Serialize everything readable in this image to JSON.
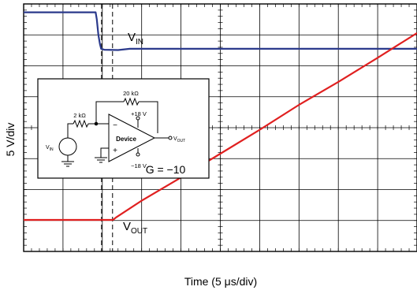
{
  "chart_data": {
    "type": "line",
    "title": "",
    "xlabel": "Time (5 μs/div)",
    "ylabel": "5 V/div",
    "grid": true,
    "divisions": {
      "x": 10,
      "y": 8
    },
    "xlim": [
      0,
      10
    ],
    "ylim": [
      0,
      8
    ],
    "series": [
      {
        "name": "V_IN",
        "label": {
          "main": "V",
          "sub": "IN"
        },
        "color": "#2b3a8c",
        "x": [
          0.0,
          1.83,
          1.86,
          1.9,
          1.94,
          1.97,
          2.05,
          2.4,
          2.7,
          10.0
        ],
        "y": [
          7.73,
          7.73,
          7.5,
          7.0,
          6.7,
          6.55,
          6.52,
          6.51,
          6.55,
          6.55
        ]
      },
      {
        "name": "V_OUT",
        "label": {
          "main": "V",
          "sub": "OUT"
        },
        "color": "#e02020",
        "x": [
          0.0,
          2.27,
          2.35,
          3.0,
          4.0,
          5.0,
          6.0,
          7.0,
          8.0,
          9.0,
          10.0
        ],
        "y": [
          1.02,
          1.02,
          1.1,
          1.64,
          2.39,
          3.16,
          3.93,
          4.74,
          5.48,
          6.26,
          7.06
        ]
      }
    ],
    "markers": {
      "dashed_vertical_x": [
        1.98,
        2.26
      ]
    },
    "inset": {
      "r_feedback": "20 kΩ",
      "r_input": "2 kΩ",
      "v_pos": "+18 V",
      "v_neg": "−18 V",
      "device": "Device",
      "minus": "−",
      "plus": "+",
      "vin": {
        "main": "V",
        "sub": "IN"
      },
      "vout": {
        "main": "V",
        "sub": "OUT"
      },
      "gain": "G = −10"
    }
  }
}
